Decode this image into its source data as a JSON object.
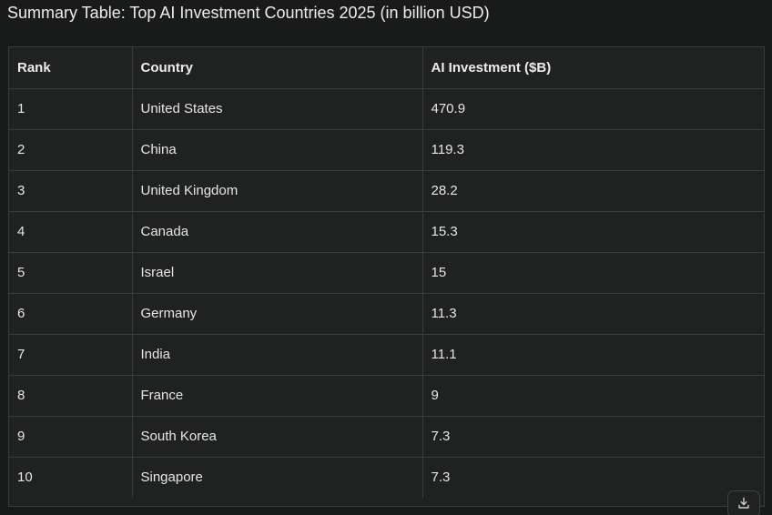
{
  "title": "Summary Table: Top AI Investment Countries 2025 (in billion USD)",
  "table": {
    "headers": [
      "Rank",
      "Country",
      "AI Investment ($B)"
    ],
    "rows": [
      [
        "1",
        "United States",
        "470.9"
      ],
      [
        "2",
        "China",
        "119.3"
      ],
      [
        "3",
        "United Kingdom",
        "28.2"
      ],
      [
        "4",
        "Canada",
        "15.3"
      ],
      [
        "5",
        "Israel",
        "15"
      ],
      [
        "6",
        "Germany",
        "11.3"
      ],
      [
        "7",
        "India",
        "11.1"
      ],
      [
        "8",
        "France",
        "9"
      ],
      [
        "9",
        "South Korea",
        "7.3"
      ],
      [
        "10",
        "Singapore",
        "7.3"
      ]
    ]
  },
  "download_button": {
    "icon": "download-icon"
  },
  "colors": {
    "background": "#191a1a",
    "table_background": "#202121",
    "border": "#3b3c3c",
    "text": "#e6e6e4"
  }
}
